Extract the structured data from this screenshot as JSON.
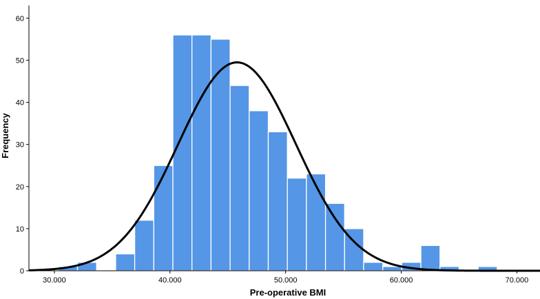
{
  "chart_data": {
    "type": "bar",
    "subtype": "histogram",
    "title": "",
    "xlabel": "Pre-operative BMI",
    "ylabel": "Frequency",
    "xlim": [
      27.8,
      72.0
    ],
    "ylim": [
      0,
      63
    ],
    "x_ticks": [
      30,
      40,
      50,
      60,
      70
    ],
    "x_tick_labels": [
      "30.000",
      "40.000",
      "50.000",
      "60.000",
      "70.000"
    ],
    "y_ticks": [
      0,
      10,
      20,
      30,
      40,
      50,
      60
    ],
    "y_tick_labels": [
      "0",
      "10",
      "20",
      "30",
      "40",
      "50",
      "60"
    ],
    "bin_width": 1.65,
    "bins": [
      {
        "start": 30.35,
        "value": 1
      },
      {
        "start": 32.0,
        "value": 2
      },
      {
        "start": 33.65,
        "value": 0
      },
      {
        "start": 35.3,
        "value": 4
      },
      {
        "start": 36.95,
        "value": 12
      },
      {
        "start": 38.6,
        "value": 25
      },
      {
        "start": 40.25,
        "value": 56
      },
      {
        "start": 41.9,
        "value": 56
      },
      {
        "start": 43.55,
        "value": 55
      },
      {
        "start": 45.2,
        "value": 44
      },
      {
        "start": 46.85,
        "value": 38
      },
      {
        "start": 48.5,
        "value": 33
      },
      {
        "start": 50.15,
        "value": 22
      },
      {
        "start": 51.8,
        "value": 23
      },
      {
        "start": 53.45,
        "value": 16
      },
      {
        "start": 55.1,
        "value": 10
      },
      {
        "start": 56.75,
        "value": 2
      },
      {
        "start": 58.4,
        "value": 1
      },
      {
        "start": 60.05,
        "value": 2
      },
      {
        "start": 61.7,
        "value": 6
      },
      {
        "start": 63.35,
        "value": 1
      },
      {
        "start": 65.0,
        "value": 0
      },
      {
        "start": 66.65,
        "value": 1
      }
    ],
    "normal_curve": {
      "mean": 45.8,
      "sd": 5.1,
      "peak": 49.5
    },
    "grid": false,
    "colors": {
      "bar": "#5596e6",
      "bar_edge": "#ffffff",
      "curve": "#000000",
      "axis": "#000000"
    }
  }
}
